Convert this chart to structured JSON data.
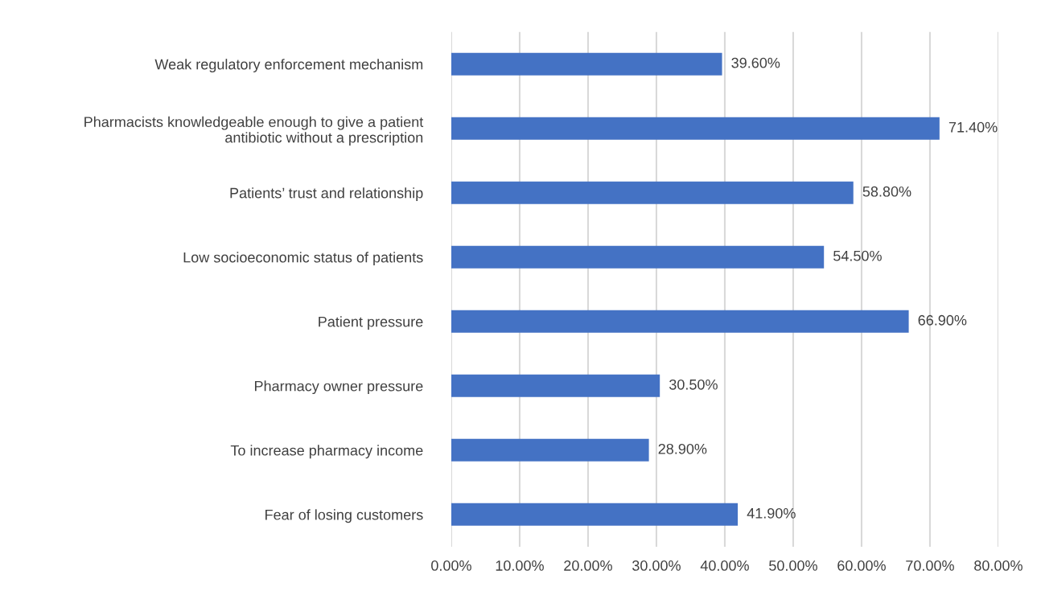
{
  "chart_data": {
    "type": "bar",
    "orientation": "horizontal",
    "categories": [
      "Weak regulatory enforcement mechanism",
      "Pharmacists knowledgeable enough to give a patient\nantibiotic without a prescription",
      "Patients’ trust and relationship",
      "Low socioeconomic status of patients",
      "Patient pressure",
      "Pharmacy owner pressure",
      "To increase pharmacy income",
      "Fear of losing customers"
    ],
    "values": [
      39.6,
      71.4,
      58.8,
      54.5,
      66.9,
      30.5,
      28.9,
      41.9
    ],
    "value_labels": [
      "39.60%",
      "71.40%",
      "58.80%",
      "54.50%",
      "66.90%",
      "30.50%",
      "28.90%",
      "41.90%"
    ],
    "color": "#4472c4",
    "xlim": [
      0,
      80
    ],
    "xticks": [
      {
        "value": 0,
        "label": "0.00%"
      },
      {
        "value": 10,
        "label": "10.00%"
      },
      {
        "value": 20,
        "label": "20.00%"
      },
      {
        "value": 30,
        "label": "30.00%"
      },
      {
        "value": 40,
        "label": "40.00%"
      },
      {
        "value": 50,
        "label": "50.00%"
      },
      {
        "value": 60,
        "label": "60.00%"
      },
      {
        "value": 70,
        "label": "70.00%"
      },
      {
        "value": 80,
        "label": "80.00%"
      }
    ],
    "grid": "x"
  }
}
